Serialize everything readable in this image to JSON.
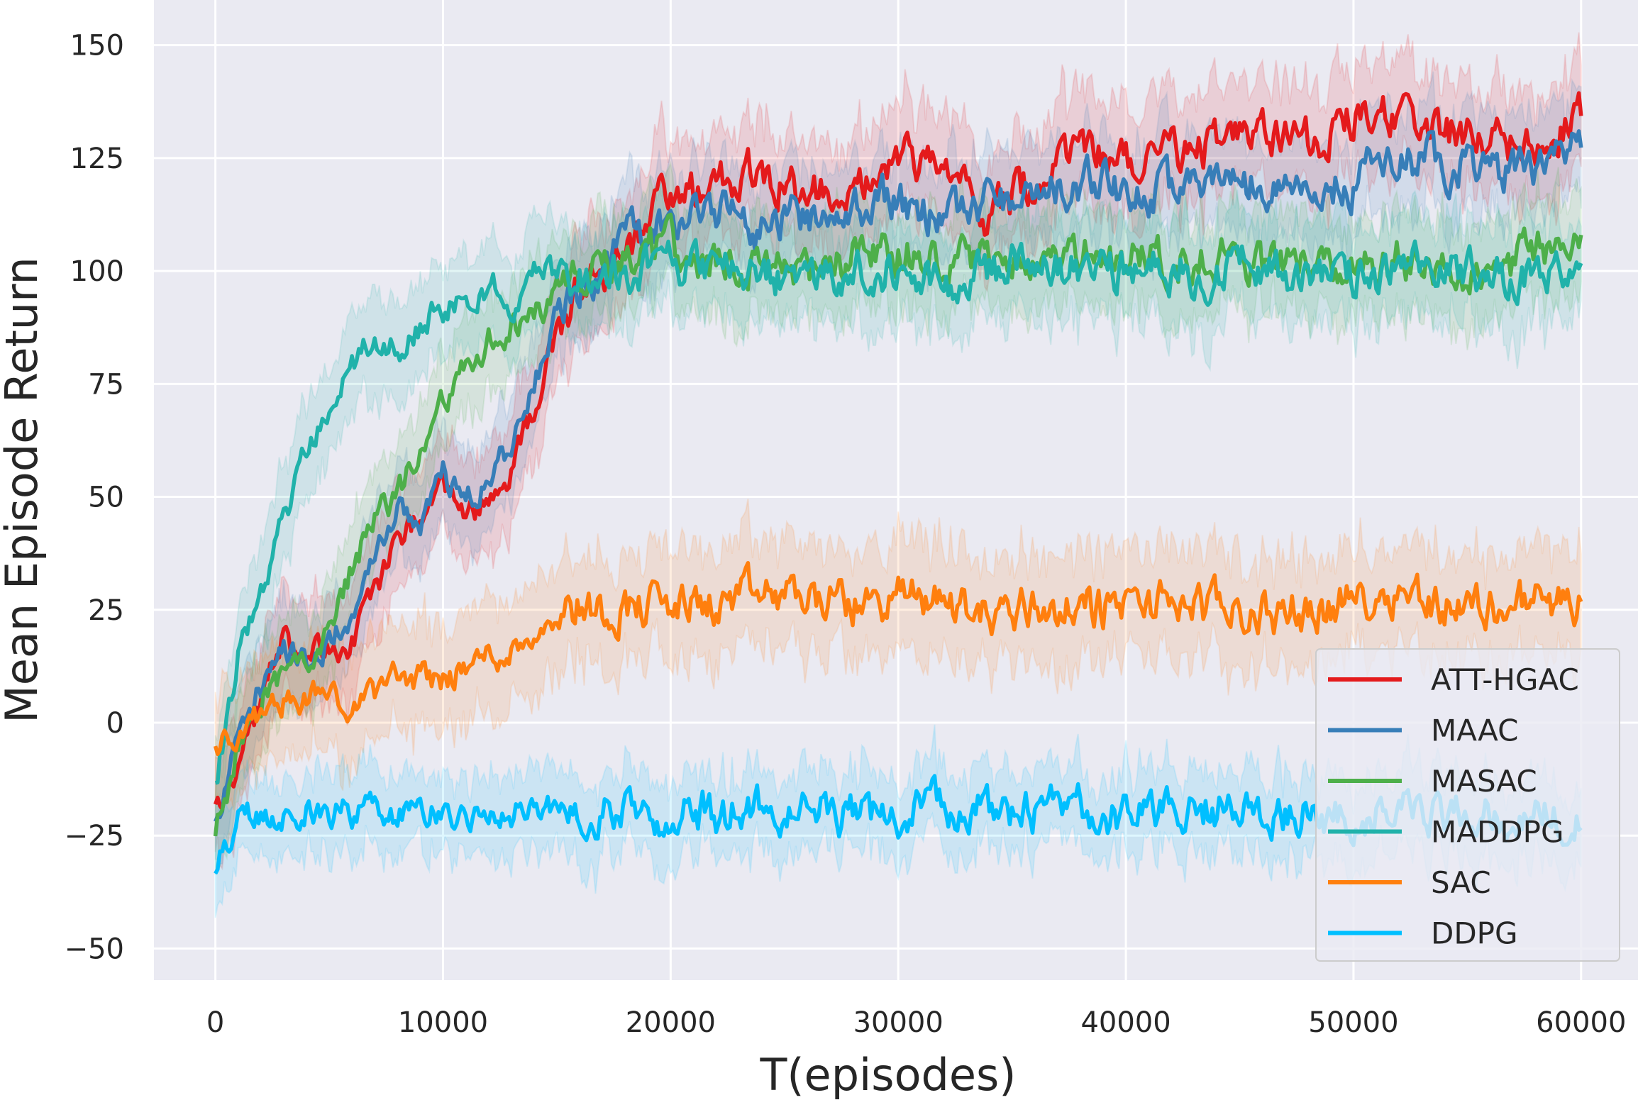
{
  "chart_data": {
    "type": "line",
    "title": "",
    "xlabel": "T(episodes)",
    "ylabel": "Mean Episode Return",
    "xlim": [
      -2700,
      62500
    ],
    "ylim": [
      -57,
      160
    ],
    "xticks": [
      0,
      10000,
      20000,
      30000,
      40000,
      50000,
      60000
    ],
    "xtick_labels": [
      "0",
      "10000",
      "20000",
      "30000",
      "40000",
      "50000",
      "60000"
    ],
    "yticks": [
      -50,
      -25,
      0,
      25,
      50,
      75,
      100,
      125,
      150
    ],
    "ytick_labels": [
      "−50",
      "−25",
      "0",
      "25",
      "50",
      "75",
      "100",
      "125",
      "150"
    ],
    "grid": true,
    "legend_position": "lower-right",
    "x": [
      0,
      1000,
      2000,
      3000,
      4000,
      5000,
      6000,
      7000,
      8000,
      9000,
      10000,
      11000,
      12000,
      13000,
      14000,
      15000,
      16000,
      17000,
      18000,
      19000,
      20000,
      22000,
      24000,
      26000,
      28000,
      30000,
      32000,
      34000,
      36000,
      38000,
      40000,
      42000,
      44000,
      46000,
      48000,
      50000,
      52000,
      54000,
      56000,
      58000,
      60000
    ],
    "series": [
      {
        "name": "ATT-HGAC",
        "color": "#e41a1c",
        "band": 10,
        "values": [
          -20,
          -8,
          5,
          18,
          15,
          15,
          18,
          30,
          40,
          45,
          50,
          45,
          50,
          55,
          70,
          85,
          95,
          100,
          105,
          108,
          118,
          118,
          122,
          118,
          120,
          125,
          120,
          112,
          120,
          125,
          125,
          126,
          128,
          130,
          128,
          134,
          136,
          130,
          130,
          128,
          134
        ]
      },
      {
        "name": "MAAC",
        "color": "#377eb8",
        "band": 9,
        "values": [
          -20,
          -5,
          8,
          15,
          12,
          18,
          25,
          40,
          48,
          45,
          55,
          48,
          55,
          62,
          75,
          90,
          98,
          100,
          108,
          110,
          112,
          112,
          110,
          112,
          115,
          115,
          112,
          115,
          118,
          120,
          118,
          118,
          118,
          120,
          118,
          120,
          126,
          124,
          122,
          122,
          130
        ]
      },
      {
        "name": "MASAC",
        "color": "#4daf4a",
        "band": 9,
        "values": [
          -25,
          -5,
          5,
          12,
          10,
          20,
          35,
          45,
          50,
          60,
          70,
          80,
          85,
          88,
          90,
          95,
          98,
          100,
          102,
          104,
          105,
          102,
          102,
          100,
          103,
          104,
          102,
          103,
          102,
          104,
          103,
          102,
          103,
          100,
          102,
          101,
          103,
          101,
          100,
          104,
          106
        ]
      },
      {
        "name": "MADDPG",
        "color": "#20b2aa",
        "band": 9,
        "values": [
          -15,
          15,
          30,
          45,
          60,
          68,
          78,
          85,
          82,
          88,
          92,
          92,
          97,
          93,
          100,
          100,
          98,
          97,
          100,
          100,
          100,
          100,
          98,
          100,
          100,
          100,
          98,
          100,
          102,
          100,
          100,
          100,
          100,
          102,
          98,
          98,
          100,
          100,
          100,
          98,
          98
        ]
      },
      {
        "name": "SAC",
        "color": "#ff7f0e",
        "band": 10,
        "values": [
          -3,
          -5,
          2,
          5,
          4,
          6,
          5,
          7,
          10,
          10,
          10,
          12,
          15,
          16,
          20,
          25,
          26,
          25,
          26,
          26,
          26,
          26,
          28,
          28,
          26,
          28,
          27,
          24,
          26,
          25,
          26,
          27,
          25,
          24,
          25,
          27,
          30,
          26,
          26,
          27,
          26
        ]
      },
      {
        "name": "DDPG",
        "color": "#00bfff",
        "band": 7,
        "values": [
          -33,
          -20,
          -20,
          -20,
          -19,
          -20,
          -20,
          -18,
          -20,
          -19,
          -20,
          -21,
          -20,
          -20,
          -19,
          -20,
          -20,
          -20,
          -19,
          -20,
          -20,
          -20,
          -19,
          -20,
          -20,
          -20,
          -19,
          -20,
          -20,
          -19,
          -20,
          -20,
          -19,
          -21,
          -20,
          -20,
          -19,
          -20,
          -20,
          -20,
          -20
        ]
      }
    ]
  }
}
